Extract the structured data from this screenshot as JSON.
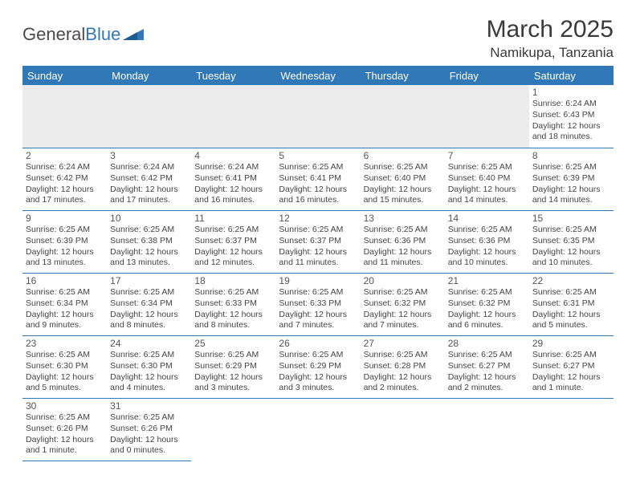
{
  "logo": {
    "part1": "General",
    "part2": "Blue"
  },
  "title": "March 2025",
  "subtitle": "Namikupa, Tanzania",
  "colors": {
    "header_bg": "#3178b8",
    "header_text": "#ffffff",
    "cell_border": "#3178b8",
    "empty_bg": "#ececec",
    "page_bg": "#ffffff",
    "body_text": "#444444",
    "daynum_text": "#555555",
    "title_text": "#3a3a3a",
    "logo_gray": "#4a4a4a",
    "logo_blue": "#3178b8"
  },
  "typography": {
    "title_fontsize": 30,
    "subtitle_fontsize": 17,
    "header_fontsize": 13,
    "daynum_fontsize": 12,
    "info_fontsize": 10.5,
    "font_family": "Arial"
  },
  "weekdays": [
    "Sunday",
    "Monday",
    "Tuesday",
    "Wednesday",
    "Thursday",
    "Friday",
    "Saturday"
  ],
  "layout": {
    "first_day_column": 6,
    "rows": 6,
    "cols": 7
  },
  "days": [
    {
      "n": "1",
      "sr": "Sunrise: 6:24 AM",
      "ss": "Sunset: 6:43 PM",
      "dl": "Daylight: 12 hours and 18 minutes."
    },
    {
      "n": "2",
      "sr": "Sunrise: 6:24 AM",
      "ss": "Sunset: 6:42 PM",
      "dl": "Daylight: 12 hours and 17 minutes."
    },
    {
      "n": "3",
      "sr": "Sunrise: 6:24 AM",
      "ss": "Sunset: 6:42 PM",
      "dl": "Daylight: 12 hours and 17 minutes."
    },
    {
      "n": "4",
      "sr": "Sunrise: 6:24 AM",
      "ss": "Sunset: 6:41 PM",
      "dl": "Daylight: 12 hours and 16 minutes."
    },
    {
      "n": "5",
      "sr": "Sunrise: 6:25 AM",
      "ss": "Sunset: 6:41 PM",
      "dl": "Daylight: 12 hours and 16 minutes."
    },
    {
      "n": "6",
      "sr": "Sunrise: 6:25 AM",
      "ss": "Sunset: 6:40 PM",
      "dl": "Daylight: 12 hours and 15 minutes."
    },
    {
      "n": "7",
      "sr": "Sunrise: 6:25 AM",
      "ss": "Sunset: 6:40 PM",
      "dl": "Daylight: 12 hours and 14 minutes."
    },
    {
      "n": "8",
      "sr": "Sunrise: 6:25 AM",
      "ss": "Sunset: 6:39 PM",
      "dl": "Daylight: 12 hours and 14 minutes."
    },
    {
      "n": "9",
      "sr": "Sunrise: 6:25 AM",
      "ss": "Sunset: 6:39 PM",
      "dl": "Daylight: 12 hours and 13 minutes."
    },
    {
      "n": "10",
      "sr": "Sunrise: 6:25 AM",
      "ss": "Sunset: 6:38 PM",
      "dl": "Daylight: 12 hours and 13 minutes."
    },
    {
      "n": "11",
      "sr": "Sunrise: 6:25 AM",
      "ss": "Sunset: 6:37 PM",
      "dl": "Daylight: 12 hours and 12 minutes."
    },
    {
      "n": "12",
      "sr": "Sunrise: 6:25 AM",
      "ss": "Sunset: 6:37 PM",
      "dl": "Daylight: 12 hours and 11 minutes."
    },
    {
      "n": "13",
      "sr": "Sunrise: 6:25 AM",
      "ss": "Sunset: 6:36 PM",
      "dl": "Daylight: 12 hours and 11 minutes."
    },
    {
      "n": "14",
      "sr": "Sunrise: 6:25 AM",
      "ss": "Sunset: 6:36 PM",
      "dl": "Daylight: 12 hours and 10 minutes."
    },
    {
      "n": "15",
      "sr": "Sunrise: 6:25 AM",
      "ss": "Sunset: 6:35 PM",
      "dl": "Daylight: 12 hours and 10 minutes."
    },
    {
      "n": "16",
      "sr": "Sunrise: 6:25 AM",
      "ss": "Sunset: 6:34 PM",
      "dl": "Daylight: 12 hours and 9 minutes."
    },
    {
      "n": "17",
      "sr": "Sunrise: 6:25 AM",
      "ss": "Sunset: 6:34 PM",
      "dl": "Daylight: 12 hours and 8 minutes."
    },
    {
      "n": "18",
      "sr": "Sunrise: 6:25 AM",
      "ss": "Sunset: 6:33 PM",
      "dl": "Daylight: 12 hours and 8 minutes."
    },
    {
      "n": "19",
      "sr": "Sunrise: 6:25 AM",
      "ss": "Sunset: 6:33 PM",
      "dl": "Daylight: 12 hours and 7 minutes."
    },
    {
      "n": "20",
      "sr": "Sunrise: 6:25 AM",
      "ss": "Sunset: 6:32 PM",
      "dl": "Daylight: 12 hours and 7 minutes."
    },
    {
      "n": "21",
      "sr": "Sunrise: 6:25 AM",
      "ss": "Sunset: 6:32 PM",
      "dl": "Daylight: 12 hours and 6 minutes."
    },
    {
      "n": "22",
      "sr": "Sunrise: 6:25 AM",
      "ss": "Sunset: 6:31 PM",
      "dl": "Daylight: 12 hours and 5 minutes."
    },
    {
      "n": "23",
      "sr": "Sunrise: 6:25 AM",
      "ss": "Sunset: 6:30 PM",
      "dl": "Daylight: 12 hours and 5 minutes."
    },
    {
      "n": "24",
      "sr": "Sunrise: 6:25 AM",
      "ss": "Sunset: 6:30 PM",
      "dl": "Daylight: 12 hours and 4 minutes."
    },
    {
      "n": "25",
      "sr": "Sunrise: 6:25 AM",
      "ss": "Sunset: 6:29 PM",
      "dl": "Daylight: 12 hours and 3 minutes."
    },
    {
      "n": "26",
      "sr": "Sunrise: 6:25 AM",
      "ss": "Sunset: 6:29 PM",
      "dl": "Daylight: 12 hours and 3 minutes."
    },
    {
      "n": "27",
      "sr": "Sunrise: 6:25 AM",
      "ss": "Sunset: 6:28 PM",
      "dl": "Daylight: 12 hours and 2 minutes."
    },
    {
      "n": "28",
      "sr": "Sunrise: 6:25 AM",
      "ss": "Sunset: 6:27 PM",
      "dl": "Daylight: 12 hours and 2 minutes."
    },
    {
      "n": "29",
      "sr": "Sunrise: 6:25 AM",
      "ss": "Sunset: 6:27 PM",
      "dl": "Daylight: 12 hours and 1 minute."
    },
    {
      "n": "30",
      "sr": "Sunrise: 6:25 AM",
      "ss": "Sunset: 6:26 PM",
      "dl": "Daylight: 12 hours and 1 minute."
    },
    {
      "n": "31",
      "sr": "Sunrise: 6:25 AM",
      "ss": "Sunset: 6:26 PM",
      "dl": "Daylight: 12 hours and 0 minutes."
    }
  ]
}
